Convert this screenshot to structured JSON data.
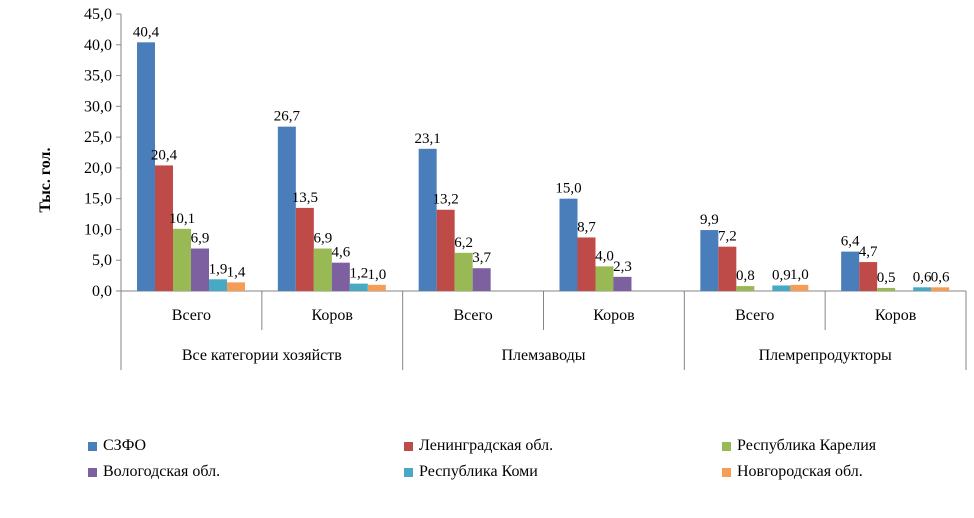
{
  "chart_data": {
    "type": "bar",
    "ylabel": "Тыс. гол.",
    "ylim": [
      0,
      45
    ],
    "yticks": [
      "0,0",
      "5,0",
      "10,0",
      "15,0",
      "20,0",
      "25,0",
      "30,0",
      "35,0",
      "40,0",
      "45,0"
    ],
    "grid": false,
    "legend_position": "bottom",
    "categories": [
      "Всего",
      "Коров",
      "Всего",
      "Коров",
      "Всего",
      "Коров"
    ],
    "groups": [
      {
        "label": "Все категории хозяйств",
        "span": 2
      },
      {
        "label": "Племзаводы",
        "span": 2
      },
      {
        "label": "Племрепродукторы",
        "span": 2
      }
    ],
    "series": [
      {
        "name": "СЗФО",
        "color": "#4A7EBB",
        "values": [
          40.4,
          26.7,
          23.1,
          15.0,
          9.9,
          6.4
        ],
        "labels": [
          "40,4",
          "26,7",
          "23,1",
          "15,0",
          "9,9",
          "6,4"
        ]
      },
      {
        "name": "Ленинградская обл.",
        "color": "#BE4B48",
        "values": [
          20.4,
          13.5,
          13.2,
          8.7,
          7.2,
          4.7
        ],
        "labels": [
          "20,4",
          "13,5",
          "13,2",
          "8,7",
          "7,2",
          "4,7"
        ]
      },
      {
        "name": "Республика Карелия",
        "color": "#98B954",
        "values": [
          10.1,
          6.9,
          6.2,
          4.0,
          0.8,
          0.5
        ],
        "labels": [
          "10,1",
          "6,9",
          "6,2",
          "4,0",
          "0,8",
          "0,5"
        ]
      },
      {
        "name": "Вологодская обл.",
        "color": "#7D60A0",
        "values": [
          6.9,
          4.6,
          3.7,
          2.3,
          null,
          null
        ],
        "labels": [
          "6,9",
          "4,6",
          "3,7",
          "2,3",
          null,
          null
        ]
      },
      {
        "name": "Республика Коми",
        "color": "#46AAC5",
        "values": [
          1.9,
          1.2,
          null,
          null,
          0.9,
          0.6
        ],
        "labels": [
          "1,9",
          "1,2",
          null,
          null,
          "0,9",
          "0,6"
        ]
      },
      {
        "name": "Новгородская обл.",
        "color": "#F59D56",
        "values": [
          1.4,
          1.0,
          null,
          null,
          1.0,
          0.6
        ],
        "labels": [
          "1,4",
          "1,0",
          null,
          null,
          "1,0",
          "0,6"
        ]
      }
    ]
  }
}
